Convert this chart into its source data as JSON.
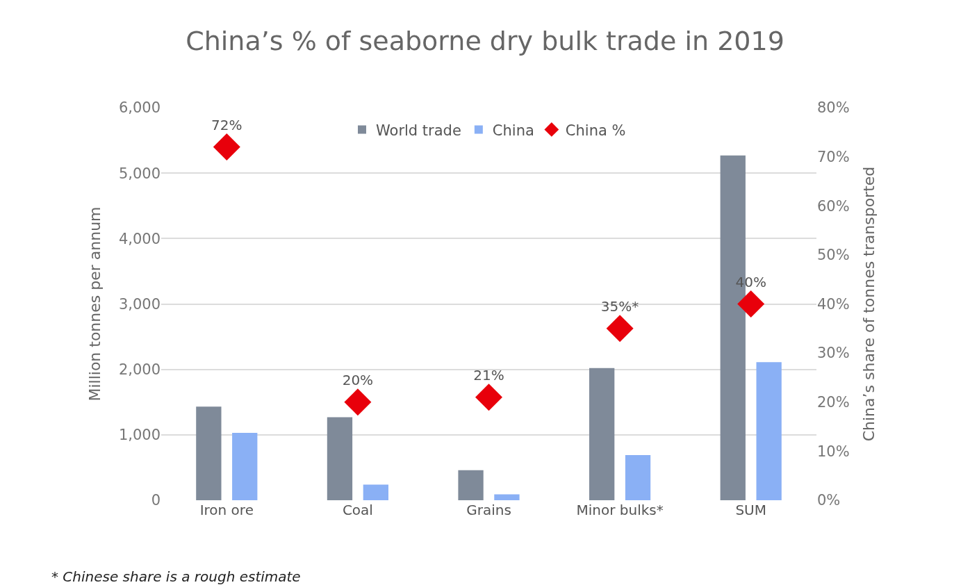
{
  "chart_data": {
    "type": "bar",
    "title": "China’s % of seaborne dry bulk trade in 2019",
    "ylabel": "Million tonnes per annum",
    "y2label": "China’s share of tonnes transported",
    "categories": [
      "Iron ore",
      "Coal",
      "Grains",
      "Minor bulks*",
      "SUM"
    ],
    "series": [
      {
        "name": "World trade",
        "color": "#7f8a99",
        "values": [
          1430,
          1270,
          460,
          2020,
          5270
        ]
      },
      {
        "name": "China",
        "color": "#8ab0f5",
        "values": [
          1030,
          240,
          90,
          690,
          2110
        ]
      },
      {
        "name": "China %",
        "type": "scatter",
        "axis": "y2",
        "marker": "diamond",
        "color": "#e8000b",
        "values": [
          72,
          20,
          21,
          35,
          40
        ],
        "value_labels": [
          "72%",
          "20%",
          "21%",
          "35%*",
          "40%"
        ]
      }
    ],
    "ylim": [
      0,
      6000
    ],
    "yticks": [
      0,
      {
        "value": 1000,
        "label": "1,000"
      },
      {
        "value": 2000,
        "label": "2,000"
      },
      {
        "value": 3000,
        "label": "3,000"
      },
      {
        "value": 4000,
        "label": "4,000"
      },
      {
        "value": 5000,
        "label": "5,000"
      },
      {
        "value": 6000,
        "label": "6,000"
      }
    ],
    "y2lim": [
      0,
      80
    ],
    "y2ticks": [
      {
        "value": 0,
        "label": "0%"
      },
      {
        "value": 10,
        "label": "10%"
      },
      {
        "value": 20,
        "label": "20%"
      },
      {
        "value": 30,
        "label": "30%"
      },
      {
        "value": 40,
        "label": "40%"
      },
      {
        "value": 50,
        "label": "50%"
      },
      {
        "value": 60,
        "label": "60%"
      },
      {
        "value": 70,
        "label": "70%"
      },
      {
        "value": 80,
        "label": "80%"
      }
    ],
    "grid": "y",
    "legend": "top",
    "annotations": [
      "* Chinese share is a rough estimate"
    ]
  }
}
